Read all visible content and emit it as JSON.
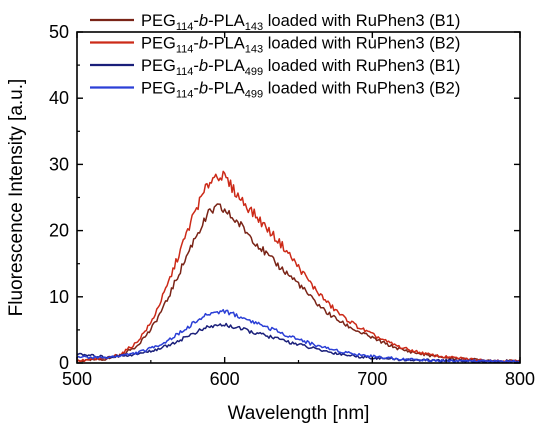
{
  "chart_data": {
    "type": "line",
    "xlabel": "Wavelength [nm]",
    "ylabel": "Fluorescence Intensity [a.u.]",
    "xlim": [
      500,
      800
    ],
    "ylim": [
      0,
      50
    ],
    "x_ticks": [
      500,
      600,
      700,
      800
    ],
    "y_ticks": [
      0,
      10,
      20,
      30,
      40,
      50
    ],
    "grid": false,
    "legend_position": "top-right",
    "series": [
      {
        "name": "PEG114-b-PLA143 loaded with RuPhen3 (B1)",
        "label": {
          "base1": "PEG",
          "sub1": "114",
          "mid": "-",
          "ital": "b",
          "base2": "-PLA",
          "sub2": "143",
          "tail": " loaded with RuPhen3 (B1)"
        },
        "color": "#7a2417",
        "x": [
          500,
          520,
          530,
          540,
          550,
          560,
          570,
          580,
          590,
          596,
          600,
          610,
          620,
          630,
          640,
          650,
          660,
          670,
          680,
          690,
          700,
          710,
          720,
          730,
          740,
          750,
          760,
          770,
          780,
          790,
          800
        ],
        "values": [
          0.3,
          0.6,
          1.2,
          2.5,
          5.0,
          9.0,
          14.0,
          19.0,
          22.8,
          23.5,
          23.0,
          21.0,
          18.5,
          16.0,
          14.0,
          12.0,
          9.5,
          7.5,
          6.0,
          4.8,
          3.8,
          2.8,
          2.0,
          1.5,
          1.1,
          0.8,
          0.6,
          0.5,
          0.4,
          0.3,
          0.3
        ]
      },
      {
        "name": "PEG114-b-PLA143 loaded with RuPhen3 (B2)",
        "label": {
          "base1": "PEG",
          "sub1": "114",
          "mid": "-",
          "ital": "b",
          "base2": "-PLA",
          "sub2": "143",
          "tail": " loaded with RuPhen3 (B2)"
        },
        "color": "#cc2a18",
        "x": [
          500,
          520,
          530,
          540,
          550,
          560,
          570,
          580,
          590,
          595,
          600,
          610,
          620,
          630,
          640,
          650,
          660,
          670,
          680,
          690,
          700,
          710,
          720,
          730,
          740,
          750,
          760,
          770,
          780,
          790,
          800
        ],
        "values": [
          0.3,
          0.7,
          1.4,
          3.0,
          6.0,
          11.0,
          17.0,
          23.0,
          27.5,
          28.5,
          28.0,
          25.0,
          22.5,
          20.0,
          17.5,
          14.5,
          11.5,
          9.0,
          7.0,
          5.5,
          4.3,
          3.2,
          2.3,
          1.7,
          1.2,
          0.9,
          0.7,
          0.5,
          0.4,
          0.3,
          0.3
        ]
      },
      {
        "name": "PEG114-b-PLA499 loaded with RuPhen3 (B1)",
        "label": {
          "base1": "PEG",
          "sub1": "114",
          "mid": "-",
          "ital": "b",
          "base2": "-PLA",
          "sub2": "499",
          "tail": " loaded with RuPhen3 (B1)"
        },
        "color": "#1a1f7a",
        "x": [
          500,
          520,
          540,
          550,
          560,
          570,
          580,
          590,
          600,
          610,
          620,
          630,
          640,
          650,
          660,
          670,
          680,
          690,
          700,
          720,
          740,
          760,
          780,
          800
        ],
        "values": [
          1.3,
          0.9,
          1.3,
          1.8,
          2.5,
          3.5,
          4.6,
          5.5,
          5.8,
          5.2,
          4.6,
          4.0,
          3.4,
          2.8,
          2.2,
          1.7,
          1.3,
          1.0,
          0.8,
          0.5,
          0.4,
          0.3,
          0.2,
          0.2
        ]
      },
      {
        "name": "PEG114-b-PLA499 loaded with RuPhen3 (B2)",
        "label": {
          "base1": "PEG",
          "sub1": "114",
          "mid": "-",
          "ital": "b",
          "base2": "-PLA",
          "sub2": "499",
          "tail": " loaded with RuPhen3 (B2)"
        },
        "color": "#2b3fd6",
        "x": [
          500,
          520,
          540,
          550,
          560,
          570,
          580,
          590,
          600,
          610,
          620,
          630,
          640,
          650,
          660,
          670,
          680,
          690,
          700,
          720,
          740,
          760,
          780,
          800
        ],
        "values": [
          0.9,
          0.8,
          1.5,
          2.2,
          3.2,
          4.6,
          6.2,
          7.5,
          7.9,
          7.0,
          6.2,
          5.3,
          4.4,
          3.6,
          2.8,
          2.2,
          1.7,
          1.3,
          1.0,
          0.6,
          0.4,
          0.3,
          0.3,
          0.2
        ]
      }
    ]
  }
}
